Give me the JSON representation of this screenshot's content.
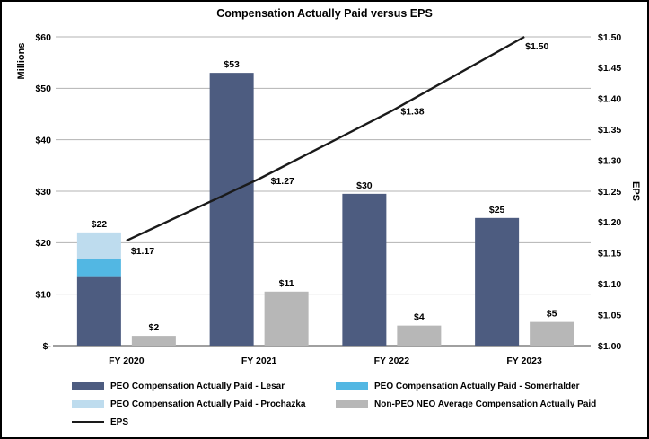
{
  "chart_data": {
    "type": "bar",
    "title": "Compensation Actually Paid versus EPS",
    "categories": [
      "FY 2020",
      "FY 2021",
      "FY 2022",
      "FY 2023"
    ],
    "left_axis": {
      "label": "Millions",
      "min": 0,
      "max": 60,
      "tick_step": 10,
      "tick_labels": [
        "$-",
        "$10",
        "$20",
        "$30",
        "$40",
        "$50",
        "$60"
      ]
    },
    "right_axis": {
      "label": "EPS",
      "min": 1.0,
      "max": 1.5,
      "tick_step": 0.05,
      "tick_labels": [
        "$1.00",
        "$1.05",
        "$1.10",
        "$1.15",
        "$1.20",
        "$1.25",
        "$1.30",
        "$1.35",
        "$1.40",
        "$1.45",
        "$1.50"
      ]
    },
    "grid": "horizontal-only",
    "series": [
      {
        "name": "PEO Compensation Actually Paid - Lesar",
        "type": "bar",
        "stack": "peo",
        "color": "#4d5c80",
        "values": [
          13.5,
          53.0,
          29.5,
          24.8
        ]
      },
      {
        "name": "PEO Compensation Actually Paid - Somerhalder",
        "type": "bar",
        "stack": "peo",
        "color": "#52b7e3",
        "values": [
          3.3,
          0,
          0,
          0
        ]
      },
      {
        "name": "PEO Compensation Actually Paid - Prochazka",
        "type": "bar",
        "stack": "peo",
        "color": "#bedcee",
        "values": [
          5.2,
          0,
          0,
          0
        ]
      },
      {
        "name": "Non-PEO NEO Average Compensation Actually Paid",
        "type": "bar",
        "stack": "neo",
        "color": "#b7b7b7",
        "values": [
          1.9,
          10.5,
          3.9,
          4.6
        ]
      }
    ],
    "stack_totals_labels": {
      "peo": [
        "$22",
        "$53",
        "$30",
        "$25"
      ],
      "neo": [
        "$2",
        "$11",
        "$4",
        "$5"
      ]
    },
    "line_series": {
      "name": "EPS",
      "axis": "right",
      "color": "#1a1a1a",
      "values": [
        1.17,
        1.27,
        1.38,
        1.5
      ],
      "point_labels": [
        "$1.17",
        "$1.27",
        "$1.38",
        "$1.50"
      ]
    },
    "legend": {
      "position": "bottom",
      "columns": 2,
      "entries": [
        {
          "label": "PEO Compensation Actually Paid - Lesar",
          "color": "#4d5c80",
          "kind": "bar",
          "col": 0,
          "row": 0
        },
        {
          "label": "PEO Compensation Actually Paid - Somerhalder",
          "color": "#52b7e3",
          "kind": "bar",
          "col": 1,
          "row": 0
        },
        {
          "label": "PEO Compensation Actually Paid - Prochazka",
          "color": "#bedcee",
          "kind": "bar",
          "col": 0,
          "row": 1
        },
        {
          "label": "Non-PEO NEO Average Compensation Actually Paid",
          "color": "#b7b7b7",
          "kind": "bar",
          "col": 1,
          "row": 1
        },
        {
          "label": "EPS",
          "color": "#1a1a1a",
          "kind": "line",
          "col": 0,
          "row": 2
        }
      ]
    },
    "colors": {
      "gridline": "#b3b3b3",
      "axis_line": "#808080",
      "text": "#000000",
      "background": "#ffffff"
    }
  }
}
